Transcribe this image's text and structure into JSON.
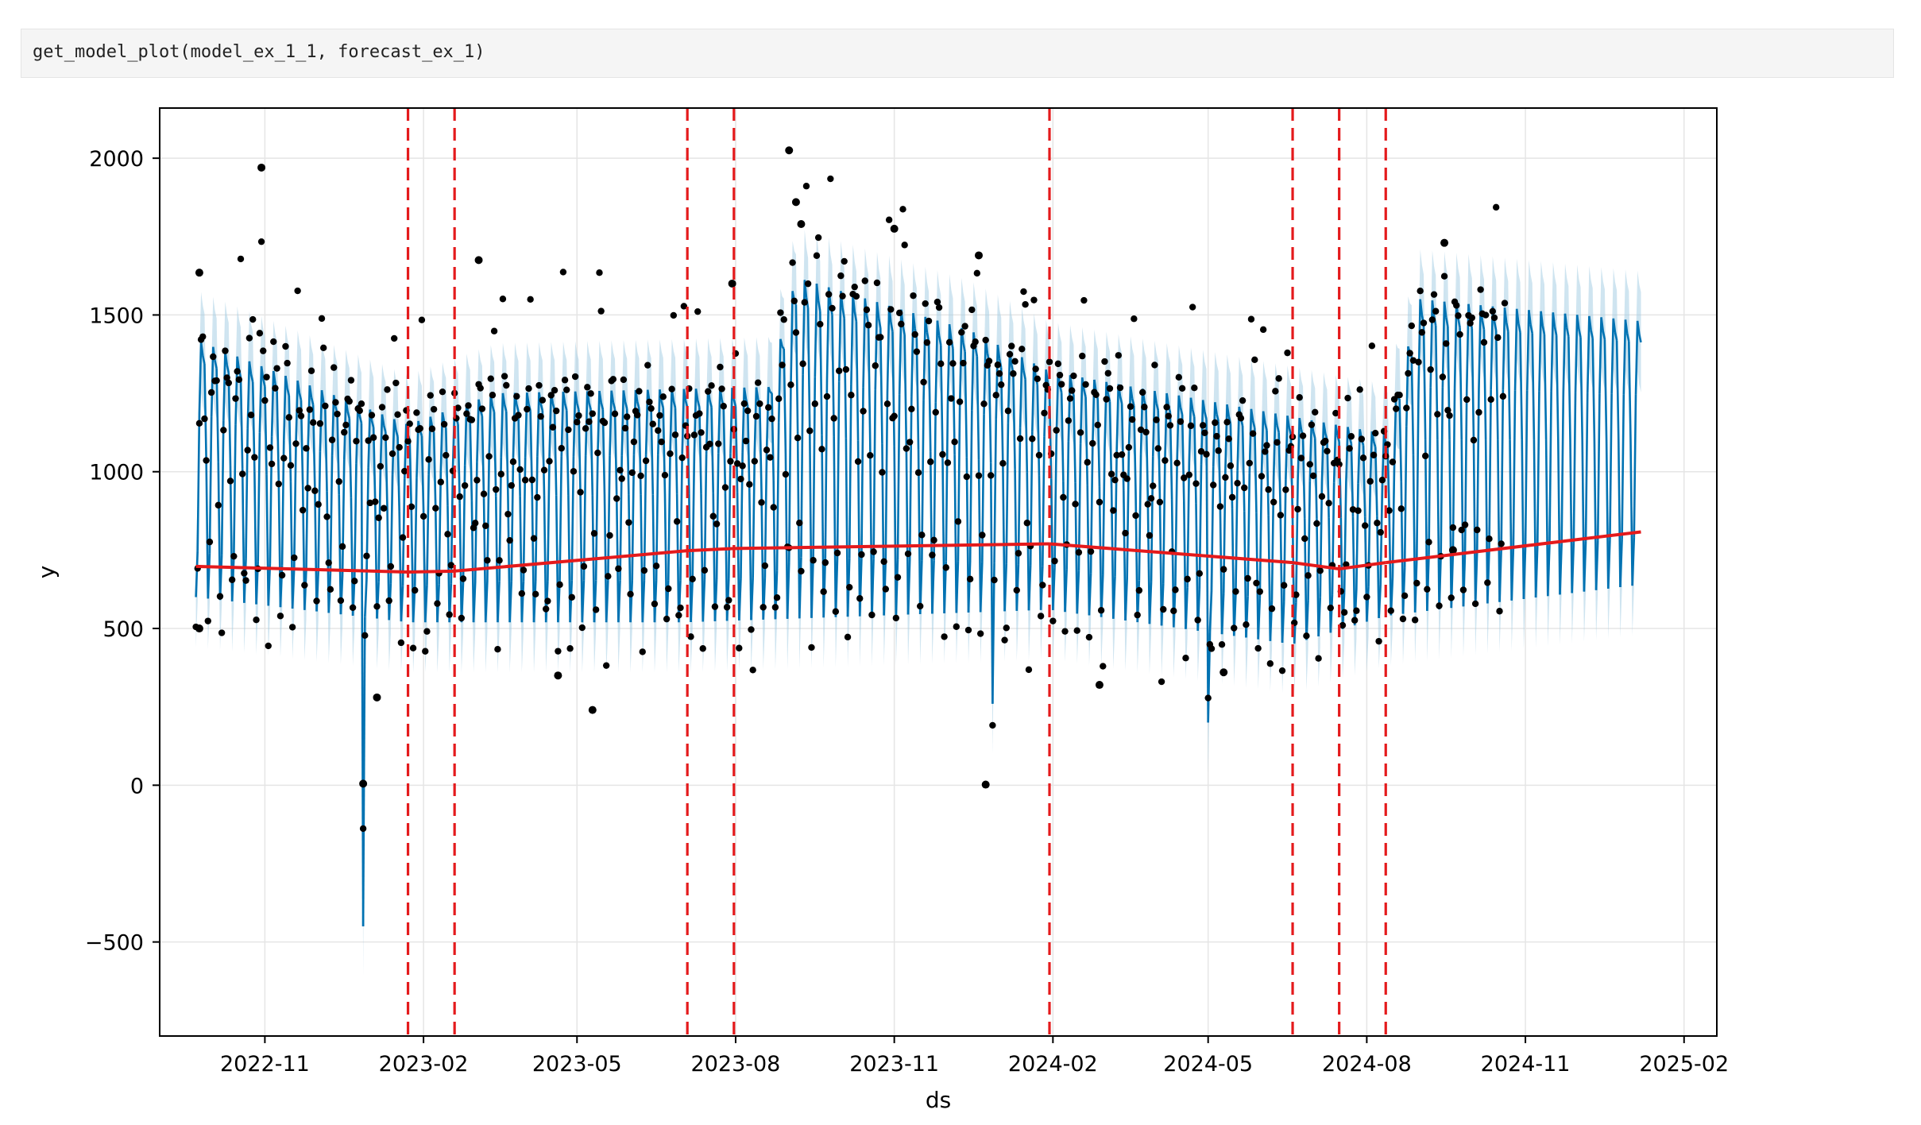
{
  "cell": {
    "code": "get_model_plot(model_ex_1_1, forecast_ex_1)"
  },
  "colors": {
    "trend": "#e41a1c",
    "forecast": "#0072b2",
    "uncertainty": "#a6cee3",
    "observed": "#000000",
    "changepoint": "#e41a1c"
  },
  "chart_data": {
    "type": "line",
    "title": "",
    "xlabel": "ds",
    "ylabel": "y",
    "ylim": [
      -800,
      2160
    ],
    "xlim": [
      "2022-09-01",
      "2025-02-20"
    ],
    "grid": true,
    "x_ticks": [
      "2022-11",
      "2023-02",
      "2023-05",
      "2023-08",
      "2023-11",
      "2024-02",
      "2024-05",
      "2024-08",
      "2024-11",
      "2025-02"
    ],
    "y_ticks": [
      -500,
      0,
      500,
      1000,
      1500,
      2000
    ],
    "y_tick_labels": [
      "−500",
      "0",
      "500",
      "1000",
      "1500",
      "2000"
    ],
    "data_start": "2022-09-22",
    "data_end": "2025-01-07",
    "observed_end": "2024-10-20",
    "changepoints": [
      "2023-01-23",
      "2023-02-19",
      "2023-07-04",
      "2023-07-31",
      "2024-01-30",
      "2024-06-19",
      "2024-07-16",
      "2024-08-12"
    ],
    "trend": {
      "dates": [
        "2022-09-22",
        "2023-01-23",
        "2023-02-19",
        "2023-07-04",
        "2023-07-31",
        "2024-01-30",
        "2024-06-19",
        "2024-07-16",
        "2024-08-12",
        "2025-01-07"
      ],
      "values": [
        698,
        680,
        683,
        748,
        755,
        770,
        710,
        690,
        710,
        808
      ]
    },
    "weekly_low_level": [
      {
        "date": "2022-09-22",
        "value": 600
      },
      {
        "date": "2023-01-23",
        "value": 520
      },
      {
        "date": "2023-07-04",
        "value": 520
      },
      {
        "date": "2024-01-30",
        "value": 560
      },
      {
        "date": "2024-06-19",
        "value": 450
      },
      {
        "date": "2024-08-12",
        "value": 540
      },
      {
        "date": "2025-01-07",
        "value": 640
      }
    ],
    "weekly_high_level": [
      {
        "date": "2022-09-22",
        "value": 1420
      },
      {
        "date": "2023-01-23",
        "value": 1150
      },
      {
        "date": "2023-03-15",
        "value": 1250
      },
      {
        "date": "2023-08-20",
        "value": 1270
      },
      {
        "date": "2023-09-05",
        "value": 1620
      },
      {
        "date": "2023-12-15",
        "value": 1450
      },
      {
        "date": "2024-01-30",
        "value": 1320
      },
      {
        "date": "2024-08-12",
        "value": 1120
      },
      {
        "date": "2024-09-01",
        "value": 1550
      },
      {
        "date": "2025-01-07",
        "value": 1480
      }
    ],
    "interval_halfwidth": 160,
    "dips": [
      {
        "date": "2022-12-28",
        "value": -450
      },
      {
        "date": "2023-12-28",
        "value": 260
      },
      {
        "date": "2024-05-01",
        "value": 200
      }
    ],
    "outliers": [
      {
        "date": "2022-09-24",
        "value": 1635
      },
      {
        "date": "2022-10-30",
        "value": 1970
      },
      {
        "date": "2022-09-24",
        "value": 500
      },
      {
        "date": "2022-12-28",
        "value": 5
      },
      {
        "date": "2023-01-05",
        "value": 280
      },
      {
        "date": "2023-03-05",
        "value": 1675
      },
      {
        "date": "2023-04-20",
        "value": 350
      },
      {
        "date": "2023-05-10",
        "value": 240
      },
      {
        "date": "2023-07-30",
        "value": 1600
      },
      {
        "date": "2023-09-01",
        "value": 2025
      },
      {
        "date": "2023-09-05",
        "value": 1860
      },
      {
        "date": "2023-09-08",
        "value": 1790
      },
      {
        "date": "2023-11-01",
        "value": 1775
      },
      {
        "date": "2023-12-20",
        "value": 1690
      },
      {
        "date": "2023-12-24",
        "value": 2
      },
      {
        "date": "2024-02-28",
        "value": 320
      },
      {
        "date": "2024-05-10",
        "value": 360
      },
      {
        "date": "2024-09-15",
        "value": 1730
      },
      {
        "date": "2024-09-20",
        "value": 750
      }
    ]
  }
}
